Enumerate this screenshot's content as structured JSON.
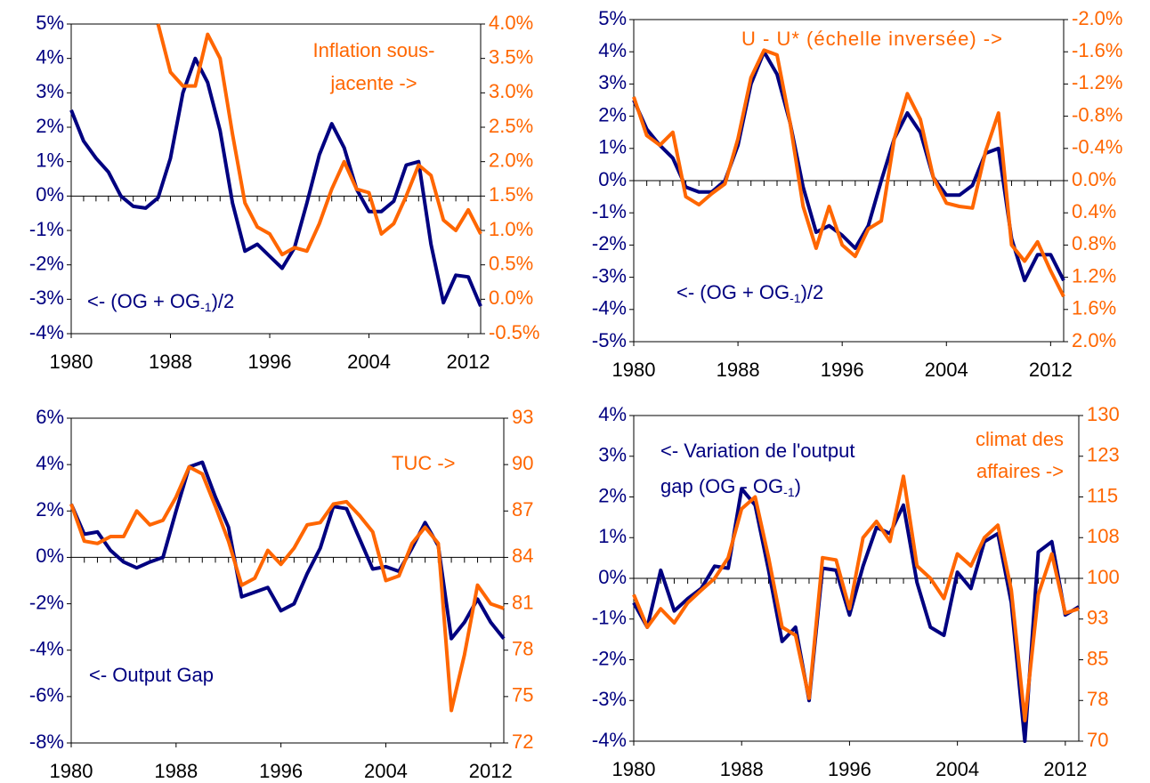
{
  "chart_data": [
    {
      "type": "line",
      "xlim": [
        1980,
        2013
      ],
      "xticks": [
        1980,
        1988,
        1996,
        2004,
        2012
      ],
      "ylim": [
        -4,
        5
      ],
      "yticks": [
        {
          "value": -4,
          "label": "-4%"
        },
        {
          "value": -3,
          "label": "-3%"
        },
        {
          "value": -2,
          "label": "-2%"
        },
        {
          "value": -1,
          "label": "-1%"
        },
        {
          "value": 0,
          "label": "0%"
        },
        {
          "value": 1,
          "label": "1%"
        },
        {
          "value": 2,
          "label": "2%"
        },
        {
          "value": 3,
          "label": "3%"
        },
        {
          "value": 4,
          "label": "4%"
        },
        {
          "value": 5,
          "label": "5%"
        }
      ],
      "y2lim": [
        -0.5,
        4.0
      ],
      "y2ticks": [
        {
          "value": -0.5,
          "label": "-0.5%"
        },
        {
          "value": 0.0,
          "label": "0.0%"
        },
        {
          "value": 0.5,
          "label": "0.5%"
        },
        {
          "value": 1.0,
          "label": "1.0%"
        },
        {
          "value": 1.5,
          "label": "1.5%"
        },
        {
          "value": 2.0,
          "label": "2.0%"
        },
        {
          "value": 2.5,
          "label": "2.5%"
        },
        {
          "value": 3.0,
          "label": "3.0%"
        },
        {
          "value": 3.5,
          "label": "3.5%"
        },
        {
          "value": 4.0,
          "label": "4.0%"
        }
      ],
      "x": [
        1980,
        1981,
        1982,
        1983,
        1984,
        1985,
        1986,
        1987,
        1988,
        1989,
        1990,
        1991,
        1992,
        1993,
        1994,
        1995,
        1996,
        1997,
        1998,
        1999,
        2000,
        2001,
        2002,
        2003,
        2004,
        2005,
        2006,
        2007,
        2008,
        2009,
        2010,
        2011,
        2012,
        2013
      ],
      "series": [
        {
          "color": "#000080",
          "values": [
            2.5,
            1.6,
            1.1,
            0.7,
            0.0,
            -0.3,
            -0.35,
            -0.05,
            1.1,
            3.0,
            4.0,
            3.3,
            1.9,
            -0.2,
            -1.6,
            -1.4,
            -1.75,
            -2.1,
            -1.5,
            -0.2,
            1.2,
            2.1,
            1.4,
            0.2,
            -0.45,
            -0.45,
            -0.15,
            0.9,
            1.0,
            -1.4,
            -3.1,
            -2.3,
            -2.35,
            -3.2
          ]
        },
        {
          "color": "#ff6600",
          "axis": "y2",
          "values": [
            null,
            null,
            null,
            null,
            null,
            null,
            null,
            4.0,
            3.3,
            3.1,
            3.1,
            3.85,
            3.5,
            2.4,
            1.4,
            1.05,
            0.95,
            0.65,
            0.75,
            0.7,
            1.1,
            1.6,
            2.0,
            1.6,
            1.55,
            0.95,
            1.1,
            1.5,
            1.95,
            1.8,
            1.15,
            1.0,
            1.3,
            0.95
          ]
        }
      ],
      "annotations": [
        {
          "color": "#ff6600",
          "lines": [
            "Inflation sous-",
            "jacente ->"
          ]
        },
        {
          "color": "#000080",
          "lines": [
            {
              "parts": [
                "<- (OG + OG",
                ")/2"
              ],
              "sub": "-1"
            }
          ]
        }
      ]
    },
    {
      "type": "line",
      "xlim": [
        1980,
        2013
      ],
      "xticks": [
        1980,
        1988,
        1996,
        2004,
        2012
      ],
      "ylim": [
        -5,
        5
      ],
      "yticks": [
        {
          "value": -5,
          "label": "-5%"
        },
        {
          "value": -4,
          "label": "-4%"
        },
        {
          "value": -3,
          "label": "-3%"
        },
        {
          "value": -2,
          "label": "-2%"
        },
        {
          "value": -1,
          "label": "-1%"
        },
        {
          "value": 0,
          "label": "0%"
        },
        {
          "value": 1,
          "label": "1%"
        },
        {
          "value": 2,
          "label": "2%"
        },
        {
          "value": 3,
          "label": "3%"
        },
        {
          "value": 4,
          "label": "4%"
        },
        {
          "value": 5,
          "label": "5%"
        }
      ],
      "y2lim": [
        -2.0,
        2.0
      ],
      "y2_inverted": true,
      "y2ticks": [
        {
          "value": -2.0,
          "label": "-2.0%"
        },
        {
          "value": -1.6,
          "label": "-1.6%"
        },
        {
          "value": -1.2,
          "label": "-1.2%"
        },
        {
          "value": -0.8,
          "label": "-0.8%"
        },
        {
          "value": -0.4,
          "label": "-0.4%"
        },
        {
          "value": 0.0,
          "label": "0.0%"
        },
        {
          "value": 0.4,
          "label": "0.4%"
        },
        {
          "value": 0.8,
          "label": "0.8%"
        },
        {
          "value": 1.2,
          "label": "1.2%"
        },
        {
          "value": 1.6,
          "label": "1.6%"
        },
        {
          "value": 2.0,
          "label": "2.0%"
        }
      ],
      "x": [
        1980,
        1981,
        1982,
        1983,
        1984,
        1985,
        1986,
        1987,
        1988,
        1989,
        1990,
        1991,
        1992,
        1993,
        1994,
        1995,
        1996,
        1997,
        1998,
        1999,
        2000,
        2001,
        2002,
        2003,
        2004,
        2005,
        2006,
        2007,
        2008,
        2009,
        2010,
        2011,
        2012,
        2013
      ],
      "series": [
        {
          "color": "#000080",
          "values": [
            2.5,
            1.6,
            1.1,
            0.7,
            -0.2,
            -0.35,
            -0.35,
            0.0,
            1.1,
            3.0,
            4.0,
            3.3,
            1.8,
            -0.2,
            -1.6,
            -1.4,
            -1.7,
            -2.1,
            -1.4,
            0.0,
            1.3,
            2.1,
            1.5,
            0.1,
            -0.45,
            -0.45,
            -0.15,
            0.85,
            1.0,
            -1.8,
            -3.1,
            -2.3,
            -2.3,
            -3.1
          ]
        },
        {
          "color": "#ff6600",
          "axis": "y2",
          "values": [
            -1.04,
            -0.56,
            -0.44,
            -0.6,
            0.2,
            0.3,
            0.16,
            0.04,
            -0.52,
            -1.28,
            -1.62,
            -1.56,
            -0.72,
            0.32,
            0.84,
            0.32,
            0.8,
            0.94,
            0.6,
            0.5,
            -0.52,
            -1.08,
            -0.76,
            -0.04,
            0.28,
            0.32,
            0.34,
            -0.36,
            -0.84,
            0.8,
            1.0,
            0.76,
            1.12,
            1.44
          ]
        }
      ],
      "annotations": [
        {
          "color": "#ff6600",
          "lines": [
            "U - U* (échelle inversée) ->"
          ]
        },
        {
          "color": "#000080",
          "lines": [
            {
              "parts": [
                "<- (OG + OG",
                ")/2"
              ],
              "sub": "-1"
            }
          ]
        }
      ]
    },
    {
      "type": "line",
      "xlim": [
        1980,
        2013
      ],
      "xticks": [
        1980,
        1988,
        1996,
        2004,
        2012
      ],
      "ylim": [
        -8,
        6
      ],
      "yticks": [
        {
          "value": -8,
          "label": "-8%"
        },
        {
          "value": -6,
          "label": "-6%"
        },
        {
          "value": -4,
          "label": "-4%"
        },
        {
          "value": -2,
          "label": "-2%"
        },
        {
          "value": 0,
          "label": "0%"
        },
        {
          "value": 2,
          "label": "2%"
        },
        {
          "value": 4,
          "label": "4%"
        },
        {
          "value": 6,
          "label": "6%"
        }
      ],
      "y2lim": [
        72,
        93
      ],
      "y2ticks": [
        72,
        75,
        78,
        81,
        84,
        87,
        90,
        93
      ],
      "x": [
        1980,
        1981,
        1982,
        1983,
        1984,
        1985,
        1986,
        1987,
        1988,
        1989,
        1990,
        1991,
        1992,
        1993,
        1994,
        1995,
        1996,
        1997,
        1998,
        1999,
        2000,
        2001,
        2002,
        2003,
        2004,
        2005,
        2006,
        2007,
        2008,
        2009,
        2010,
        2011,
        2012,
        2013
      ],
      "series": [
        {
          "color": "#000080",
          "values": [
            2.3,
            1.0,
            1.1,
            0.3,
            -0.2,
            -0.45,
            -0.2,
            0.0,
            2.0,
            3.9,
            4.1,
            2.6,
            1.3,
            -1.7,
            -1.5,
            -1.3,
            -2.3,
            -2.0,
            -0.7,
            0.4,
            2.2,
            2.1,
            0.8,
            -0.5,
            -0.4,
            -0.6,
            0.4,
            1.5,
            0.5,
            -3.5,
            -2.8,
            -1.8,
            -2.8,
            -3.5
          ]
        },
        {
          "color": "#ff6600",
          "axis": "y2",
          "values": [
            87.45,
            85.05,
            84.9,
            85.35,
            85.35,
            87,
            86.1,
            86.4,
            87.9,
            89.85,
            89.4,
            87.3,
            85.05,
            82.2,
            82.65,
            84.45,
            83.55,
            84.6,
            86.1,
            86.25,
            87.45,
            87.6,
            86.7,
            85.65,
            82.5,
            82.8,
            84.9,
            85.95,
            84.9,
            74.1,
            77.7,
            82.2,
            81.0,
            80.7
          ]
        }
      ],
      "annotations": [
        {
          "color": "#ff6600",
          "lines": [
            "TUC ->"
          ]
        },
        {
          "color": "#000080",
          "lines": [
            "<- Output Gap"
          ]
        }
      ]
    },
    {
      "type": "line",
      "xlim": [
        1980,
        2013
      ],
      "xticks": [
        1980,
        1988,
        1996,
        2004,
        2012
      ],
      "ylim": [
        -4,
        4
      ],
      "yticks": [
        {
          "value": -4,
          "label": "-4%"
        },
        {
          "value": -3,
          "label": "-3%"
        },
        {
          "value": -2,
          "label": "-2%"
        },
        {
          "value": -1,
          "label": "-1%"
        },
        {
          "value": 0,
          "label": "0%"
        },
        {
          "value": 1,
          "label": "1%"
        },
        {
          "value": 2,
          "label": "2%"
        },
        {
          "value": 3,
          "label": "3%"
        },
        {
          "value": 4,
          "label": "4%"
        }
      ],
      "y2lim": [
        70,
        130
      ],
      "y2ticks": [
        70,
        {
          "value": 77.5,
          "label": "78"
        },
        85,
        {
          "value": 92.5,
          "label": "93"
        },
        100,
        {
          "value": 107.5,
          "label": "108"
        },
        115,
        {
          "value": 122.5,
          "label": "123"
        },
        130
      ],
      "x": [
        1980,
        1981,
        1982,
        1983,
        1984,
        1985,
        1986,
        1987,
        1988,
        1989,
        1990,
        1991,
        1992,
        1993,
        1994,
        1995,
        1996,
        1997,
        1998,
        1999,
        2000,
        2001,
        2002,
        2003,
        2004,
        2005,
        2006,
        2007,
        2008,
        2009,
        2010,
        2011,
        2012,
        2013
      ],
      "series": [
        {
          "color": "#000080",
          "values": [
            -0.6,
            -1.2,
            0.2,
            -0.8,
            -0.5,
            -0.25,
            0.3,
            0.25,
            2.2,
            1.8,
            0.2,
            -1.55,
            -1.2,
            -3.0,
            0.25,
            0.2,
            -0.9,
            0.3,
            1.25,
            1.1,
            1.8,
            -0.1,
            -1.2,
            -1.4,
            0.15,
            -0.25,
            0.9,
            1.1,
            -0.6,
            -4.0,
            0.65,
            0.9,
            -0.9,
            -0.7
          ]
        },
        {
          "color": "#ff6600",
          "axis": "y2",
          "values": [
            97,
            91,
            94.4,
            91.8,
            95.5,
            97.8,
            100,
            103.8,
            112.8,
            115,
            103.8,
            91,
            89.5,
            77.9,
            103.8,
            103.4,
            94.4,
            107.5,
            110.5,
            106.8,
            118.8,
            102.3,
            100,
            96.3,
            104.5,
            102.3,
            107.5,
            109.8,
            97.8,
            73.8,
            97,
            104.5,
            93.6,
            94.4
          ]
        }
      ],
      "annotations": [
        {
          "color": "#000080",
          "lines": [
            "<- Variation de l'output",
            {
              "parts": [
                "gap (OG - OG",
                ")"
              ],
              "sub": "-1"
            }
          ]
        },
        {
          "color": "#ff6600",
          "lines": [
            "climat des",
            "affaires ->"
          ]
        }
      ]
    }
  ]
}
